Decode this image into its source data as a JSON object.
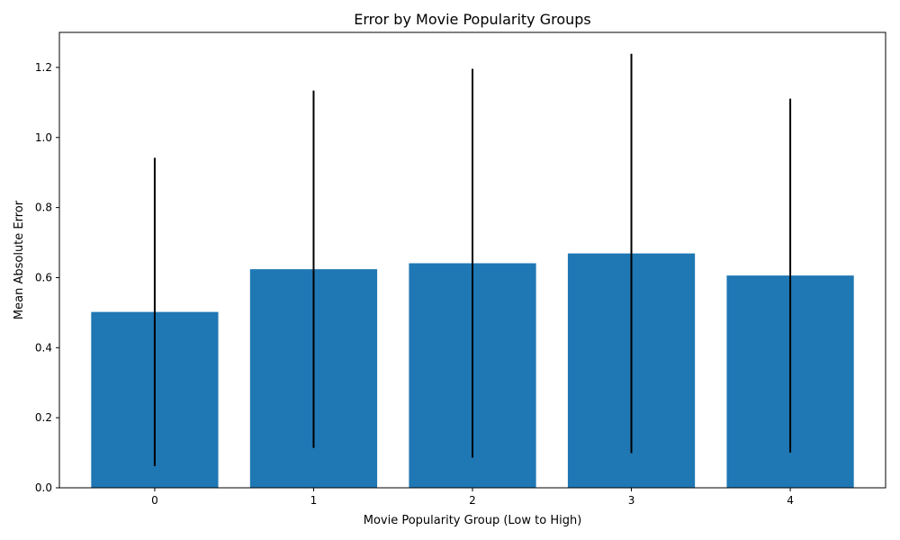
{
  "chart_data": {
    "type": "bar",
    "title": "Error by Movie Popularity Groups",
    "xlabel": "Movie Popularity Group (Low to High)",
    "ylabel": "Mean Absolute Error",
    "categories": [
      "0",
      "1",
      "2",
      "3",
      "4"
    ],
    "values": [
      0.502,
      0.624,
      0.641,
      0.669,
      0.606
    ],
    "errors": [
      0.44,
      0.51,
      0.555,
      0.57,
      0.505
    ],
    "yticks": [
      "0.0",
      "0.2",
      "0.4",
      "0.6",
      "0.8",
      "1.0",
      "1.2"
    ],
    "ylim": [
      0,
      1.3
    ],
    "grid": false,
    "colors": {
      "bar": "#1f77b4",
      "errorbar": "#000000",
      "axis": "#000000"
    }
  }
}
